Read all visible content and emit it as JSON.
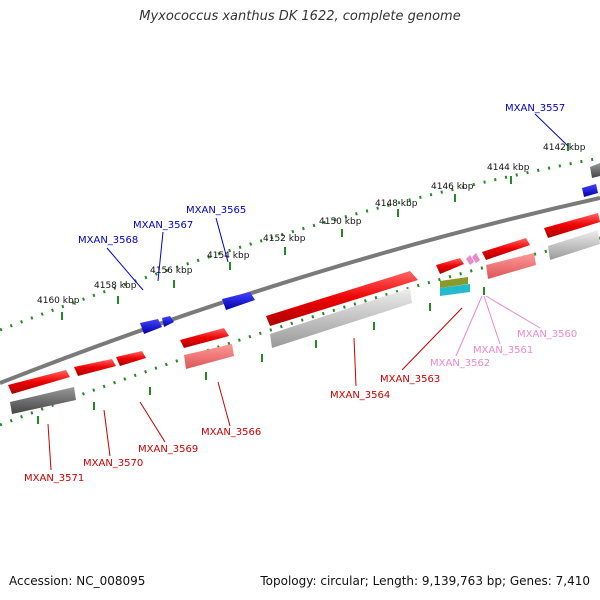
{
  "title": "Myxococcus xanthus DK 1622, complete genome",
  "footer": {
    "accession": "Accession: NC_008095",
    "summary": "Topology: circular; Length: 9,139,763 bp; Genes: 7,410"
  },
  "colors": {
    "forward_gene": "#ff0000",
    "reverse_gene": "#0000ff",
    "backbone": "#7a7a7a",
    "ticks": "#228b22",
    "label_forward": "#cc0000",
    "label_reverse": "#0000cc",
    "label_pink": "#ee88cc"
  },
  "scale_ticks": [
    "4142 kbp",
    "4144 kbp",
    "4146 kbp",
    "4148 kbp",
    "4150 kbp",
    "4152 kbp",
    "4154 kbp",
    "4156 kbp",
    "4158 kbp",
    "4160 kbp"
  ],
  "gene_labels": [
    "MXAN_3557",
    "MXAN_3565",
    "MXAN_3567",
    "MXAN_3568",
    "MXAN_3560",
    "MXAN_3561",
    "MXAN_3562",
    "MXAN_3563",
    "MXAN_3564",
    "MXAN_3566",
    "MXAN_3569",
    "MXAN_3570",
    "MXAN_3571"
  ]
}
